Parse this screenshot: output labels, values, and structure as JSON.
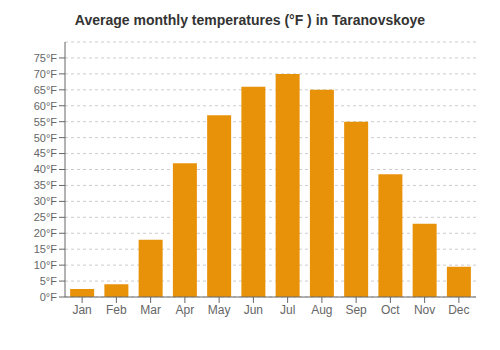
{
  "chart_data": {
    "type": "bar",
    "title": "Average monthly temperatures (°F ) in Taranovskoye",
    "categories": [
      "Jan",
      "Feb",
      "Mar",
      "Apr",
      "May",
      "Jun",
      "Jul",
      "Aug",
      "Sep",
      "Oct",
      "Nov",
      "Dec"
    ],
    "values": [
      2.5,
      4.0,
      18.0,
      42.0,
      57.0,
      66.0,
      70.0,
      65.0,
      55.0,
      38.5,
      23.0,
      9.5
    ],
    "color": "#E8920A",
    "ylim": [
      0,
      80
    ],
    "yticks": [
      {
        "value": 0,
        "label": "0°F"
      },
      {
        "value": 5,
        "label": "5°F"
      },
      {
        "value": 10,
        "label": "10°F"
      },
      {
        "value": 15,
        "label": "15°F"
      },
      {
        "value": 20,
        "label": "20°F"
      },
      {
        "value": 25,
        "label": "25°F"
      },
      {
        "value": 30,
        "label": "30°F"
      },
      {
        "value": 35,
        "label": "35°F"
      },
      {
        "value": 40,
        "label": "40°F"
      },
      {
        "value": 45,
        "label": "45°F"
      },
      {
        "value": 50,
        "label": "50°F"
      },
      {
        "value": 55,
        "label": "55°F"
      },
      {
        "value": 60,
        "label": "60°F"
      },
      {
        "value": 65,
        "label": "65°F"
      },
      {
        "value": 70,
        "label": "70°F"
      },
      {
        "value": 75,
        "label": "75°F"
      }
    ],
    "grid": true
  }
}
